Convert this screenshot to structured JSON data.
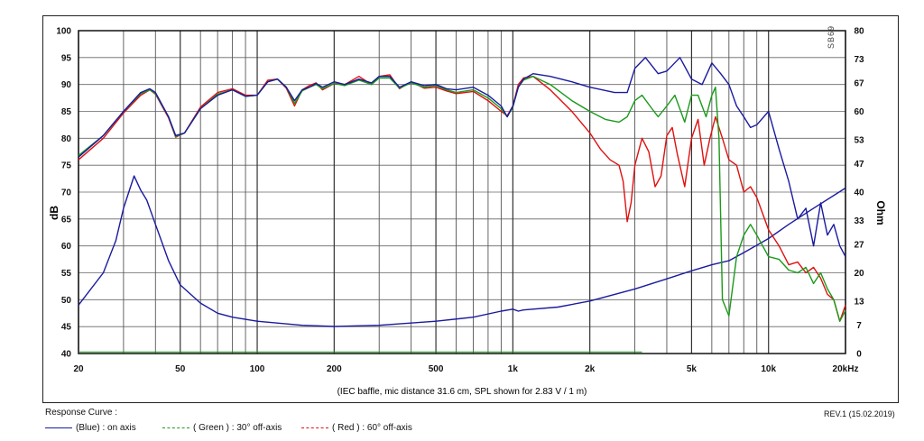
{
  "brand_mark": "SB69",
  "caption": "(IEC baffle, mic distance 31.6 cm, SPL shown for 2.83 V / 1 m)",
  "revision": "REV.1 (15.02.2019)",
  "legend": {
    "title": "Response Curve :",
    "items": [
      {
        "label": "(Blue)  : on axis",
        "color": "#1a1aa0",
        "style": "solid"
      },
      {
        "label": "( Green ) : 30° off-axis",
        "color": "#1a9a1a",
        "style": "dashed"
      },
      {
        "label": "( Red ) : 60° off-axis",
        "color": "#e01010",
        "style": "dashed"
      }
    ]
  },
  "chart_data": {
    "type": "line",
    "xlabel": "",
    "ylabel": "dB",
    "y2label": "Ohm",
    "xscale": "log",
    "xlim": [
      20,
      20000
    ],
    "ylim": [
      40,
      100
    ],
    "y2lim": [
      0,
      80
    ],
    "grid": true,
    "x_ticks": [
      {
        "value": 20,
        "label": "20"
      },
      {
        "value": 50,
        "label": "50"
      },
      {
        "value": 100,
        "label": "100"
      },
      {
        "value": 200,
        "label": "200"
      },
      {
        "value": 500,
        "label": "500"
      },
      {
        "value": 1000,
        "label": "1k"
      },
      {
        "value": 2000,
        "label": "2k"
      },
      {
        "value": 5000,
        "label": "5k"
      },
      {
        "value": 10000,
        "label": "10k"
      },
      {
        "value": 20000,
        "label": "20kHz"
      }
    ],
    "y_ticks": [
      {
        "value": 100,
        "label": "100"
      },
      {
        "value": 95,
        "label": "95"
      },
      {
        "value": 90,
        "label": "90"
      },
      {
        "value": 85,
        "label": "85"
      },
      {
        "value": 80,
        "label": "80"
      },
      {
        "value": 75,
        "label": "75"
      },
      {
        "value": 70,
        "label": "70"
      },
      {
        "value": 65,
        "label": "65"
      },
      {
        "value": 60,
        "label": "60"
      },
      {
        "value": 55,
        "label": "55"
      },
      {
        "value": 50,
        "label": "50"
      },
      {
        "value": 45,
        "label": "45"
      },
      {
        "value": 40,
        "label": "40"
      }
    ],
    "y2_ticks": [
      {
        "value": 80,
        "label": "80"
      },
      {
        "value": 73,
        "label": "73"
      },
      {
        "value": 67,
        "label": "67"
      },
      {
        "value": 60,
        "label": "60"
      },
      {
        "value": 53,
        "label": "53"
      },
      {
        "value": 47,
        "label": "47"
      },
      {
        "value": 40,
        "label": "40"
      },
      {
        "value": 33,
        "label": "33"
      },
      {
        "value": 27,
        "label": "27"
      },
      {
        "value": 20,
        "label": "20"
      },
      {
        "value": 13,
        "label": "13"
      },
      {
        "value": 7,
        "label": "7"
      },
      {
        "value": 0,
        "label": "0"
      }
    ],
    "series": [
      {
        "name": "(Blue)  : on axis",
        "axis": "left",
        "color": "#1a1aa0",
        "dash": "",
        "x": [
          20,
          25,
          30,
          35,
          38,
          40,
          45,
          48,
          52,
          60,
          70,
          80,
          90,
          100,
          110,
          120,
          130,
          140,
          150,
          160,
          170,
          180,
          200,
          220,
          250,
          280,
          300,
          330,
          360,
          400,
          450,
          500,
          550,
          600,
          700,
          800,
          900,
          950,
          1000,
          1050,
          1100,
          1200,
          1400,
          1700,
          2000,
          2500,
          2800,
          3000,
          3300,
          3700,
          4000,
          4500,
          5000,
          5500,
          6000,
          6500,
          7000,
          7500,
          8000,
          8500,
          9000,
          10000,
          11000,
          12000,
          13000,
          14000,
          15000,
          16000,
          17000,
          18000,
          19000,
          20000
        ],
        "y": [
          76.5,
          80.5,
          85,
          88.5,
          89.2,
          88.5,
          84,
          80.5,
          81,
          85.5,
          88,
          89,
          87.8,
          88,
          90.5,
          91,
          89.5,
          87,
          89,
          89.5,
          90.2,
          89.5,
          90.5,
          90,
          91,
          90.3,
          91.5,
          91.5,
          89.5,
          90.5,
          89.8,
          90,
          89.2,
          89,
          89.5,
          88,
          86,
          84,
          86,
          89.5,
          91,
          92,
          91.5,
          90.5,
          89.5,
          88.5,
          88.5,
          93,
          95,
          92,
          92.5,
          95,
          91,
          90,
          94,
          92,
          90,
          86,
          84,
          82,
          82.5,
          85,
          78,
          72,
          65,
          67,
          60,
          68,
          62,
          64,
          60,
          58
        ]
      },
      {
        "name": "( Green ) : 30° off-axis",
        "axis": "left",
        "color": "#1a9a1a",
        "dash": "3,2",
        "x": [
          20,
          25,
          30,
          35,
          38,
          40,
          45,
          48,
          52,
          60,
          70,
          80,
          90,
          100,
          110,
          120,
          130,
          140,
          150,
          160,
          170,
          180,
          200,
          220,
          250,
          280,
          300,
          330,
          360,
          400,
          450,
          500,
          550,
          600,
          700,
          800,
          900,
          950,
          1000,
          1050,
          1100,
          1200,
          1400,
          1700,
          2000,
          2300,
          2600,
          2800,
          3000,
          3200,
          3500,
          3700,
          4000,
          4300,
          4700,
          5000,
          5300,
          5700,
          6000,
          6200,
          6400,
          6600,
          7000,
          7500,
          8000,
          8500,
          9000,
          10000,
          11000,
          12000,
          13000,
          14000,
          15000,
          16000,
          17000,
          18000,
          19000,
          20000
        ],
        "y": [
          76.8,
          80.5,
          85,
          88.3,
          89,
          88.3,
          84,
          80.3,
          81,
          85.5,
          88.2,
          89,
          87.8,
          88,
          90.5,
          91,
          89.5,
          86.5,
          88.8,
          89.5,
          90,
          89.2,
          90.2,
          89.8,
          90.8,
          90,
          91.2,
          91.2,
          89.3,
          90.3,
          89.5,
          89.8,
          89,
          88.5,
          89,
          87.5,
          85.5,
          84,
          85.8,
          89.5,
          90.8,
          91.5,
          90,
          87,
          85,
          83.5,
          83,
          84,
          87,
          88,
          85.5,
          84,
          86,
          88,
          83,
          88,
          88,
          84,
          88,
          89.5,
          80,
          50,
          47,
          58,
          62,
          64,
          62,
          58,
          57.5,
          55.5,
          55,
          56,
          53,
          55,
          52,
          50,
          46,
          48
        ]
      },
      {
        "name": "( Red ) : 60° off-axis",
        "axis": "left",
        "color": "#e01010",
        "dash": "3,2",
        "x": [
          20,
          25,
          30,
          35,
          38,
          40,
          45,
          48,
          52,
          60,
          70,
          80,
          90,
          100,
          110,
          120,
          130,
          140,
          150,
          160,
          170,
          180,
          200,
          220,
          250,
          280,
          300,
          330,
          360,
          400,
          450,
          500,
          550,
          600,
          700,
          800,
          900,
          950,
          1000,
          1050,
          1100,
          1200,
          1400,
          1700,
          2000,
          2200,
          2400,
          2600,
          2700,
          2800,
          2900,
          3000,
          3200,
          3400,
          3600,
          3800,
          4000,
          4200,
          4400,
          4700,
          5000,
          5300,
          5600,
          5900,
          6200,
          6600,
          7000,
          7500,
          8000,
          8500,
          9000,
          10000,
          11000,
          12000,
          13000,
          14000,
          15000,
          16000,
          17000,
          18000,
          19000,
          20000
        ],
        "y": [
          76,
          80,
          84.7,
          88,
          89,
          88.2,
          83.8,
          80.2,
          81,
          85.8,
          88.5,
          89.2,
          88,
          88,
          90.8,
          91,
          89.3,
          86,
          89,
          89.8,
          90.3,
          89,
          90.2,
          90,
          91.5,
          90,
          91.5,
          91.8,
          89.2,
          90.5,
          89.3,
          89.5,
          88.8,
          88.3,
          88.7,
          87,
          85,
          84.2,
          86,
          90,
          91.2,
          91.5,
          89,
          85,
          81,
          78,
          76,
          75,
          72,
          64.5,
          68,
          75,
          80,
          77.5,
          71,
          73,
          80.5,
          82,
          77,
          71,
          80,
          83.5,
          75,
          80,
          84,
          80,
          76,
          75,
          70,
          71,
          69,
          63,
          60,
          56.5,
          57,
          55,
          56,
          54,
          51,
          50,
          46,
          49
        ]
      },
      {
        "name": "Impedance",
        "axis": "right",
        "color": "#1a1aa0",
        "dash": "",
        "x": [
          20,
          25,
          28,
          30,
          33,
          35,
          37,
          40,
          45,
          50,
          60,
          70,
          80,
          100,
          150,
          200,
          300,
          500,
          700,
          900,
          1000,
          1050,
          1100,
          1500,
          2000,
          3000,
          4000,
          5000,
          6000,
          7000,
          8000,
          10000,
          12000,
          15000,
          20000
        ],
        "y": [
          12,
          20,
          28,
          36,
          44,
          40.5,
          38,
          32,
          23,
          17,
          12.5,
          10,
          9,
          8,
          7,
          6.7,
          7,
          8,
          9,
          10.5,
          11,
          10.5,
          10.8,
          11.5,
          13,
          16,
          18.5,
          20.5,
          22,
          23,
          25,
          28.5,
          32,
          36,
          41
        ]
      }
    ]
  }
}
